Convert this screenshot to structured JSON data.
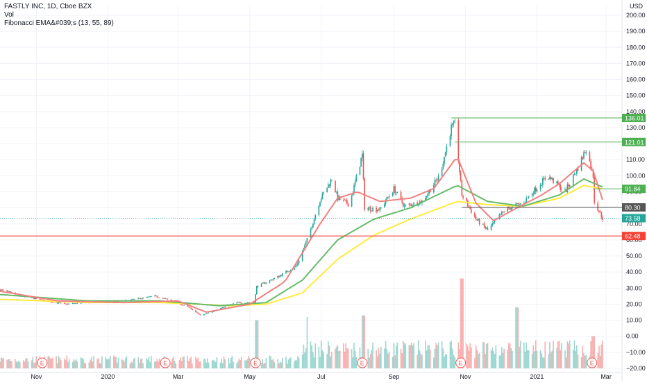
{
  "header": {
    "symbol_line": "FASTLY INC, 1D, Cboe BZX",
    "vol_line": "Vol",
    "indicator_line": "Fibonacci EMA&#039;s (13, 55, 89)",
    "currency": "USD"
  },
  "colors": {
    "up": "#26a69a",
    "down": "#ef5350",
    "ema13": "#f08080",
    "ema55": "#66bb6a",
    "ema89": "#ffeb3b",
    "level_green": "#4caf50",
    "level_gray": "#555555",
    "level_red": "#f44336",
    "last_price": "#26a69a"
  },
  "chart_data": {
    "type": "line",
    "title": "FASTLY INC, 1D, Cboe BZX",
    "y_axis_labels": [
      "200.00",
      "190.00",
      "180.00",
      "170.00",
      "160.00",
      "150.00",
      "140.00",
      "130.00",
      "120.00",
      "110.00",
      "100.00",
      "90.00",
      "80.00",
      "70.00",
      "60.00",
      "50.00",
      "40.00",
      "30.00",
      "20.00",
      "10.00",
      "0.00",
      "−10.00",
      "−20.00"
    ],
    "y_axis_values": [
      200,
      190,
      180,
      170,
      160,
      150,
      140,
      130,
      120,
      110,
      100,
      90,
      80,
      70,
      60,
      50,
      40,
      30,
      20,
      10,
      0,
      -10,
      -20
    ],
    "x_axis_labels": [
      "Nov",
      "2020",
      "Mar",
      "May",
      "Jul",
      "Sep",
      "Nov",
      "2021",
      "Mar"
    ],
    "x_axis_dates": [
      "2019-11-01",
      "2020-01-01",
      "2020-03-01",
      "2020-05-01",
      "2020-07-01",
      "2020-09-01",
      "2020-11-01",
      "2021-01-01",
      "2021-03-01"
    ],
    "earnings_markers": [
      {
        "label": "E",
        "date": "2019-11-06"
      },
      {
        "label": "E",
        "date": "2020-02-19"
      },
      {
        "label": "E",
        "date": "2020-05-06"
      },
      {
        "label": "E",
        "date": "2020-08-05"
      },
      {
        "label": "E",
        "date": "2020-10-28"
      },
      {
        "label": "E",
        "date": "2021-02-17"
      }
    ],
    "price_levels": [
      {
        "label": "136.01",
        "value": 136.01,
        "role": "green"
      },
      {
        "label": "121.01",
        "value": 121.01,
        "role": "green"
      },
      {
        "label": "91.84",
        "value": 91.84,
        "role": "green"
      },
      {
        "label": "80.30",
        "value": 80.3,
        "role": "gray"
      },
      {
        "label": "73.58",
        "value": 73.58,
        "role": "last"
      },
      {
        "label": "62.48",
        "value": 62.48,
        "role": "red"
      }
    ],
    "close_anchors": [
      {
        "date": "2019-10-01",
        "value": 29
      },
      {
        "date": "2019-10-20",
        "value": 25
      },
      {
        "date": "2019-11-10",
        "value": 22
      },
      {
        "date": "2019-11-25",
        "value": 20
      },
      {
        "date": "2019-12-15",
        "value": 21
      },
      {
        "date": "2020-01-15",
        "value": 22
      },
      {
        "date": "2020-02-10",
        "value": 25
      },
      {
        "date": "2020-02-25",
        "value": 22
      },
      {
        "date": "2020-03-10",
        "value": 18
      },
      {
        "date": "2020-03-20",
        "value": 13
      },
      {
        "date": "2020-04-01",
        "value": 16
      },
      {
        "date": "2020-04-20",
        "value": 21
      },
      {
        "date": "2020-05-05",
        "value": 21
      },
      {
        "date": "2020-05-07",
        "value": 31
      },
      {
        "date": "2020-05-25",
        "value": 37
      },
      {
        "date": "2020-06-10",
        "value": 44
      },
      {
        "date": "2020-06-20",
        "value": 62
      },
      {
        "date": "2020-06-30",
        "value": 85
      },
      {
        "date": "2020-07-10",
        "value": 98
      },
      {
        "date": "2020-07-15",
        "value": 86
      },
      {
        "date": "2020-07-25",
        "value": 82
      },
      {
        "date": "2020-08-05",
        "value": 113
      },
      {
        "date": "2020-08-07",
        "value": 80
      },
      {
        "date": "2020-08-20",
        "value": 79
      },
      {
        "date": "2020-09-01",
        "value": 92
      },
      {
        "date": "2020-09-10",
        "value": 81
      },
      {
        "date": "2020-09-25",
        "value": 84
      },
      {
        "date": "2020-10-10",
        "value": 100
      },
      {
        "date": "2020-10-20",
        "value": 130
      },
      {
        "date": "2020-10-23",
        "value": 132
      },
      {
        "date": "2020-10-29",
        "value": 88
      },
      {
        "date": "2020-11-10",
        "value": 73
      },
      {
        "date": "2020-11-20",
        "value": 66
      },
      {
        "date": "2020-12-05",
        "value": 79
      },
      {
        "date": "2020-12-20",
        "value": 83
      },
      {
        "date": "2021-01-10",
        "value": 100
      },
      {
        "date": "2021-01-25",
        "value": 90
      },
      {
        "date": "2021-02-05",
        "value": 105
      },
      {
        "date": "2021-02-12",
        "value": 117
      },
      {
        "date": "2021-02-18",
        "value": 100
      },
      {
        "date": "2021-02-19",
        "value": 84
      },
      {
        "date": "2021-02-26",
        "value": 73.58
      }
    ],
    "ema13_anchors": [
      {
        "date": "2019-10-01",
        "value": 28
      },
      {
        "date": "2019-11-20",
        "value": 22
      },
      {
        "date": "2020-01-15",
        "value": 21
      },
      {
        "date": "2020-03-01",
        "value": 22
      },
      {
        "date": "2020-03-25",
        "value": 15
      },
      {
        "date": "2020-05-01",
        "value": 20
      },
      {
        "date": "2020-05-31",
        "value": 34
      },
      {
        "date": "2020-06-30",
        "value": 70
      },
      {
        "date": "2020-07-15",
        "value": 86
      },
      {
        "date": "2020-08-01",
        "value": 90
      },
      {
        "date": "2020-08-20",
        "value": 84
      },
      {
        "date": "2020-09-15",
        "value": 86
      },
      {
        "date": "2020-10-05",
        "value": 92
      },
      {
        "date": "2020-10-25",
        "value": 112
      },
      {
        "date": "2020-11-10",
        "value": 83
      },
      {
        "date": "2020-11-25",
        "value": 72
      },
      {
        "date": "2020-12-15",
        "value": 80
      },
      {
        "date": "2021-01-05",
        "value": 88
      },
      {
        "date": "2021-01-20",
        "value": 95
      },
      {
        "date": "2021-02-10",
        "value": 108
      },
      {
        "date": "2021-02-18",
        "value": 103
      },
      {
        "date": "2021-02-26",
        "value": 85
      }
    ],
    "ema55_anchors": [
      {
        "date": "2019-10-01",
        "value": 26
      },
      {
        "date": "2019-12-15",
        "value": 22
      },
      {
        "date": "2020-02-15",
        "value": 22
      },
      {
        "date": "2020-04-05",
        "value": 19
      },
      {
        "date": "2020-05-15",
        "value": 21
      },
      {
        "date": "2020-06-15",
        "value": 35
      },
      {
        "date": "2020-07-15",
        "value": 60
      },
      {
        "date": "2020-08-15",
        "value": 73
      },
      {
        "date": "2020-09-15",
        "value": 80
      },
      {
        "date": "2020-10-25",
        "value": 94
      },
      {
        "date": "2020-11-20",
        "value": 84
      },
      {
        "date": "2020-12-20",
        "value": 81
      },
      {
        "date": "2021-01-20",
        "value": 88
      },
      {
        "date": "2021-02-10",
        "value": 98
      },
      {
        "date": "2021-02-26",
        "value": 93
      }
    ],
    "ema89_anchors": [
      {
        "date": "2019-10-01",
        "value": 23
      },
      {
        "date": "2019-12-15",
        "value": 21
      },
      {
        "date": "2020-02-15",
        "value": 21
      },
      {
        "date": "2020-04-15",
        "value": 19
      },
      {
        "date": "2020-05-15",
        "value": 20
      },
      {
        "date": "2020-06-15",
        "value": 27
      },
      {
        "date": "2020-07-15",
        "value": 48
      },
      {
        "date": "2020-08-15",
        "value": 63
      },
      {
        "date": "2020-09-15",
        "value": 73
      },
      {
        "date": "2020-10-25",
        "value": 84
      },
      {
        "date": "2020-11-20",
        "value": 82
      },
      {
        "date": "2020-12-20",
        "value": 81
      },
      {
        "date": "2021-01-20",
        "value": 86
      },
      {
        "date": "2021-02-10",
        "value": 94
      },
      {
        "date": "2021-02-26",
        "value": 91.84
      }
    ],
    "volume_spikes": [
      {
        "date": "2020-05-07",
        "value": 10
      },
      {
        "date": "2020-06-20",
        "value": 12
      },
      {
        "date": "2020-08-06",
        "value": 13
      },
      {
        "date": "2020-10-29",
        "value": 36
      },
      {
        "date": "2020-12-15",
        "value": 18
      },
      {
        "date": "2021-02-18",
        "value": 0
      }
    ],
    "ylim": [
      -20,
      200
    ],
    "grid": true,
    "legend": "top-left"
  }
}
